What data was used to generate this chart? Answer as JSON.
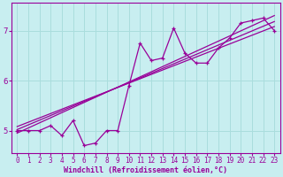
{
  "xlabel": "Windchill (Refroidissement éolien,°C)",
  "bg_color": "#c8eef0",
  "grid_color": "#aadddd",
  "line_color": "#990099",
  "xlim": [
    -0.5,
    23.5
  ],
  "ylim": [
    4.55,
    7.55
  ],
  "yticks": [
    5,
    6,
    7
  ],
  "xticks": [
    0,
    1,
    2,
    3,
    4,
    5,
    6,
    7,
    8,
    9,
    10,
    11,
    12,
    13,
    14,
    15,
    16,
    17,
    18,
    19,
    20,
    21,
    22,
    23
  ],
  "data_x": [
    0,
    1,
    2,
    3,
    4,
    5,
    6,
    7,
    8,
    9,
    10,
    11,
    12,
    13,
    14,
    15,
    16,
    17,
    18,
    19,
    20,
    21,
    22,
    23
  ],
  "data_y": [
    5.0,
    5.0,
    5.0,
    5.1,
    4.9,
    5.2,
    4.7,
    4.75,
    5.0,
    5.0,
    5.9,
    6.75,
    6.4,
    6.45,
    7.05,
    6.55,
    6.35,
    6.35,
    6.65,
    6.85,
    7.15,
    7.2,
    7.25,
    7.0
  ],
  "reg_lines": [
    [
      [
        0,
        4.95
      ],
      [
        23,
        7.3
      ]
    ],
    [
      [
        0,
        5.02
      ],
      [
        23,
        7.18
      ]
    ],
    [
      [
        0,
        5.08
      ],
      [
        23,
        7.08
      ]
    ]
  ]
}
